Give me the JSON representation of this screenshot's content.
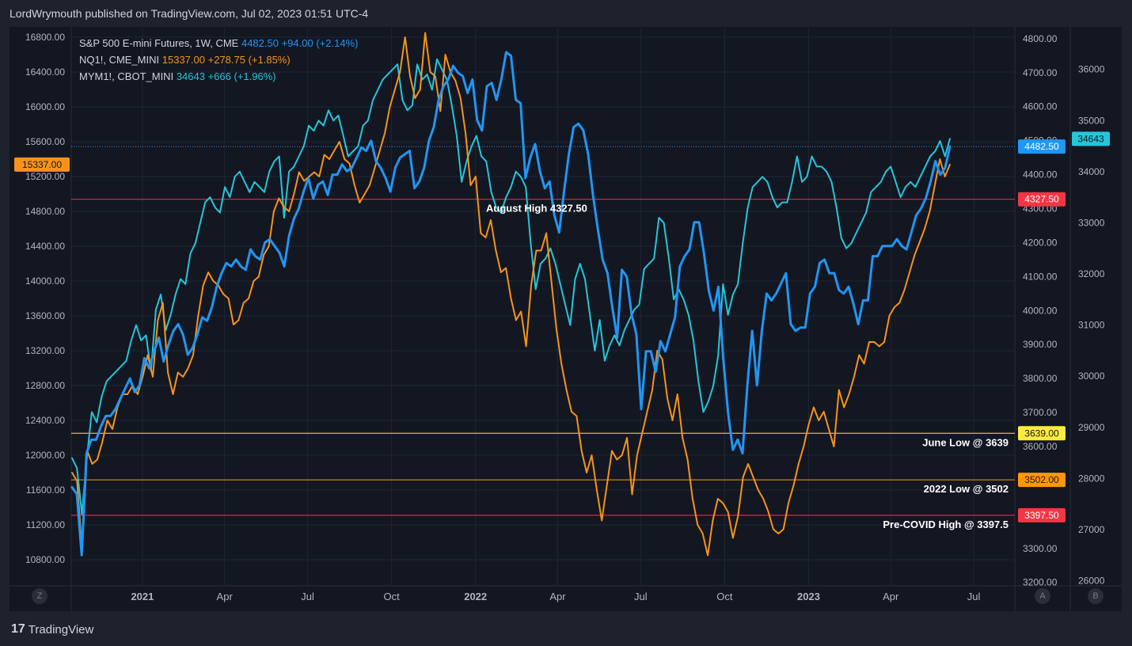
{
  "header": {
    "publish_line": "LordWrymouth published on TradingView.com, Jul 02, 2023 01:51 UTC-4"
  },
  "footer": {
    "brand_mark": "17",
    "brand": "TradingView"
  },
  "corner_buttons": {
    "left": "Z",
    "scale_a": "A",
    "scale_b": "B"
  },
  "legend": [
    {
      "name": "S&P 500 E-mini Futures, 1W, CME",
      "value": "4482.50",
      "change": "+94.00 (+2.14%)",
      "color": "#2196f3"
    },
    {
      "name": "NQ1!, CME_MINI",
      "value": "15337.00",
      "change": "+278.75 (+1.85%)",
      "color": "#f7931a"
    },
    {
      "name": "MYM1!, CBOT_MINI",
      "value": "34643",
      "change": "+666 (+1.96%)",
      "color": "#26c6da"
    }
  ],
  "chart_data": {
    "type": "line",
    "x_ticks": [
      "2021",
      "Apr",
      "Jul",
      "Oct",
      "2022",
      "Apr",
      "Jul",
      "Oct",
      "2023",
      "Apr",
      "Jul"
    ],
    "x_tick_bold": [
      "2021",
      "2022",
      "2023"
    ],
    "x_range": [
      "2020-10-15",
      "2023-08-15"
    ],
    "left_axis": {
      "series": "NQ1!",
      "ylim": [
        10500,
        16900
      ],
      "ticks": [
        "16800.00",
        "16400.00",
        "16000.00",
        "15600.00",
        "15200.00",
        "14800.00",
        "14400.00",
        "14000.00",
        "13600.00",
        "13200.00",
        "12800.00",
        "12400.00",
        "12000.00",
        "11600.00",
        "11200.00",
        "10800.00"
      ]
    },
    "right_axis_a": {
      "series": "S&P 500 E-mini",
      "ylim": [
        3190,
        4830
      ],
      "ticks": [
        "4800.00",
        "4700.00",
        "4600.00",
        "4500.00",
        "4400.00",
        "4300.00",
        "4200.00",
        "4100.00",
        "4000.00",
        "3900.00",
        "3800.00",
        "3700.00",
        "3600.00",
        "3500.00",
        "3400.00",
        "3300.00",
        "3200.00"
      ]
    },
    "right_axis_b": {
      "series": "MYM1!",
      "ylim": [
        25900,
        36800
      ],
      "ticks": [
        "36000",
        "35000",
        "34000",
        "33000",
        "32000",
        "31000",
        "30000",
        "29000",
        "28000",
        "27000",
        "26000"
      ]
    },
    "horizontal_levels": [
      {
        "price": 4327.5,
        "label": "August High 4327.50",
        "badge": "4327.50",
        "color": "#f23645"
      },
      {
        "price": 3639,
        "label": "June Low @ 3639",
        "badge": "3639.00",
        "color": "#ffeb3b"
      },
      {
        "price": 3502,
        "label": "2022 Low @ 3502",
        "badge": "3502.00",
        "color": "#ff9800"
      },
      {
        "price": 3397.5,
        "label": "Pre-COVID High @ 3397.5",
        "badge": "3397.50",
        "color": "#f23645"
      }
    ],
    "last_value_badges": {
      "es": "4482.50",
      "nq": "15337.00",
      "mym": "34643"
    },
    "series": [
      {
        "name": "S&P 500 E-mini Futures",
        "axis": "a",
        "color": "#2196f3",
        "values": [
          3480,
          3460,
          3280,
          3580,
          3620,
          3620,
          3660,
          3690,
          3690,
          3710,
          3740,
          3770,
          3800,
          3760,
          3780,
          3860,
          3830,
          3880,
          3920,
          3850,
          3900,
          3940,
          3960,
          3930,
          3870,
          3890,
          3930,
          3980,
          3970,
          4010,
          4070,
          4110,
          4140,
          4130,
          4150,
          4130,
          4120,
          4180,
          4160,
          4150,
          4200,
          4210,
          4190,
          4170,
          4130,
          4220,
          4270,
          4300,
          4350,
          4390,
          4330,
          4370,
          4380,
          4340,
          4400,
          4400,
          4430,
          4410,
          4420,
          4450,
          4480,
          4470,
          4500,
          4440,
          4420,
          4390,
          4350,
          4420,
          4450,
          4460,
          4470,
          4360,
          4380,
          4420,
          4500,
          4540,
          4620,
          4660,
          4680,
          4720,
          4700,
          4690,
          4640,
          4680,
          4560,
          4530,
          4660,
          4670,
          4620,
          4680,
          4760,
          4750,
          4620,
          4610,
          4390,
          4450,
          4490,
          4410,
          4360,
          4380,
          4280,
          4230,
          4350,
          4460,
          4540,
          4550,
          4530,
          4460,
          4340,
          4240,
          4150,
          4110,
          4010,
          3920,
          4120,
          4100,
          3990,
          3930,
          3710,
          3880,
          3880,
          3820,
          3910,
          3880,
          3930,
          3980,
          4130,
          4160,
          4180,
          4260,
          4260,
          4170,
          4060,
          4000,
          4070,
          3860,
          3700,
          3590,
          3620,
          3580,
          3780,
          3940,
          3780,
          3940,
          4050,
          4030,
          4050,
          4080,
          4110,
          3960,
          3940,
          3950,
          3950,
          4050,
          4070,
          4140,
          4150,
          4110,
          4110,
          4060,
          4050,
          4070,
          4020,
          3960,
          4030,
          4030,
          4160,
          4160,
          4190,
          4190,
          4190,
          4210,
          4190,
          4180,
          4230,
          4280,
          4300,
          4330,
          4380,
          4440,
          4400,
          4420,
          4482.5
        ]
      },
      {
        "name": "NQ1!",
        "axis": "left",
        "color": "#f7931a",
        "values": [
          11800,
          11700,
          10900,
          12050,
          11900,
          11950,
          12150,
          12400,
          12300,
          12550,
          12700,
          12700,
          12800,
          12700,
          12900,
          13150,
          12900,
          13550,
          13750,
          12950,
          12700,
          12950,
          12900,
          13000,
          13150,
          13600,
          13950,
          14100,
          14000,
          13950,
          13850,
          13800,
          13500,
          13550,
          13750,
          13800,
          14000,
          14050,
          14300,
          14400,
          14800,
          14950,
          14850,
          14800,
          15000,
          15250,
          15150,
          15200,
          15250,
          15200,
          15450,
          15400,
          15500,
          15600,
          15400,
          15350,
          15100,
          14900,
          15000,
          15100,
          15300,
          15500,
          15700,
          16000,
          16200,
          16400,
          16800,
          16350,
          16100,
          16200,
          16850,
          16400,
          16350,
          15950,
          16600,
          16400,
          16300,
          16100,
          15700,
          15100,
          15200,
          14550,
          14500,
          14700,
          14350,
          14100,
          14150,
          13800,
          13550,
          13650,
          13250,
          13950,
          14350,
          14350,
          14550,
          14000,
          13450,
          13050,
          12750,
          12500,
          12450,
          12050,
          11800,
          12000,
          11600,
          11250,
          11650,
          12050,
          11950,
          12000,
          12200,
          11550,
          12000,
          12250,
          12500,
          12750,
          13200,
          13100,
          12650,
          12400,
          12700,
          12200,
          11950,
          11500,
          11200,
          11100,
          10850,
          11250,
          11500,
          11450,
          11350,
          11050,
          11300,
          11750,
          11900,
          11750,
          11600,
          11500,
          11350,
          11150,
          11100,
          11150,
          11450,
          11650,
          11900,
          12100,
          12350,
          12550,
          12400,
          12500,
          12300,
          12100,
          12750,
          12550,
          12700,
          12900,
          13150,
          13050,
          13300,
          13300,
          13250,
          13300,
          13600,
          13700,
          13750,
          13900,
          14100,
          14300,
          14450,
          14600,
          14800,
          15100,
          15400,
          15200,
          15337
        ]
      },
      {
        "name": "MYM1!",
        "axis": "b",
        "color": "#26c6da",
        "values": [
          28400,
          28200,
          27300,
          28400,
          29300,
          29100,
          29600,
          29900,
          30000,
          30100,
          30200,
          30300,
          30700,
          31000,
          30700,
          30800,
          30100,
          31300,
          31600,
          30900,
          31200,
          31600,
          31900,
          31800,
          32400,
          32600,
          33000,
          33400,
          33500,
          33300,
          33200,
          33700,
          33500,
          33900,
          34000,
          33800,
          33600,
          33800,
          33700,
          33600,
          34000,
          34200,
          34300,
          33100,
          34000,
          34100,
          34300,
          34500,
          34900,
          34800,
          35000,
          34900,
          35200,
          35000,
          35100,
          34700,
          34300,
          34400,
          34500,
          34900,
          35000,
          35400,
          35600,
          35800,
          35900,
          36000,
          36100,
          35400,
          35200,
          35300,
          36100,
          35800,
          35900,
          35600,
          36200,
          36000,
          35800,
          35300,
          34700,
          33800,
          34200,
          34500,
          34700,
          34300,
          34200,
          33600,
          33300,
          33200,
          33500,
          33700,
          34000,
          33900,
          33700,
          32600,
          31700,
          32200,
          32300,
          32500,
          32200,
          31800,
          31400,
          31000,
          31900,
          32200,
          31900,
          31200,
          30500,
          31100,
          30300,
          30600,
          30800,
          30600,
          30900,
          31100,
          31300,
          31400,
          32100,
          32200,
          32300,
          33100,
          33000,
          32300,
          31500,
          31700,
          31500,
          31200,
          30700,
          29900,
          29300,
          29500,
          29800,
          30400,
          31800,
          31200,
          31600,
          31800,
          32600,
          33300,
          33700,
          33800,
          33900,
          33800,
          33500,
          33300,
          33400,
          33400,
          33800,
          34300,
          33800,
          33900,
          34300,
          34100,
          34100,
          34000,
          33800,
          33300,
          32700,
          32500,
          32600,
          32800,
          33000,
          33200,
          33600,
          33700,
          33800,
          34000,
          34100,
          33800,
          33500,
          33700,
          33800,
          33700,
          33900,
          34100,
          34300,
          34400,
          34600,
          34300,
          34643
        ]
      }
    ]
  }
}
